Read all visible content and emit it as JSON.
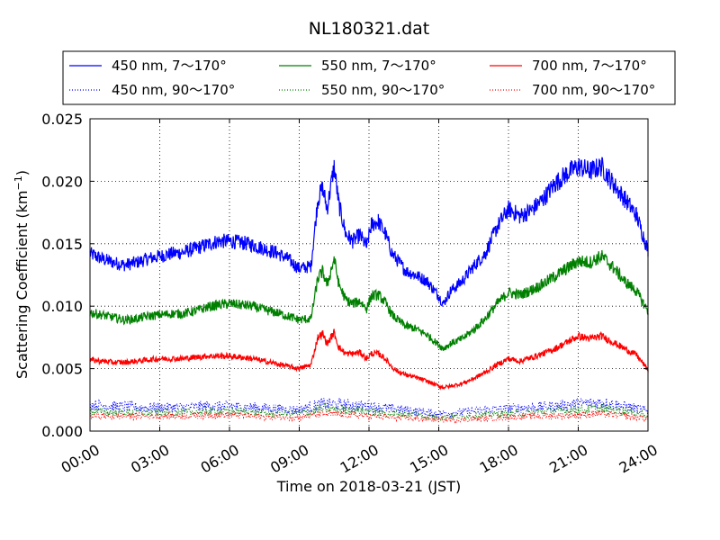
{
  "chart_data": {
    "type": "line",
    "title": "NL180321.dat",
    "xlabel": "Time on 2018-03-21 (JST)",
    "ylabel_main": "Scattering Coefficient (km",
    "ylabel_sup": "−1",
    "ylabel_close": ")",
    "x_unit": "hours",
    "xlim": [
      0,
      24
    ],
    "ylim": [
      0,
      0.025
    ],
    "x_ticks": [
      0,
      3,
      6,
      9,
      12,
      15,
      18,
      21,
      24
    ],
    "x_tick_labels": [
      "00:00",
      "03:00",
      "06:00",
      "09:00",
      "12:00",
      "15:00",
      "18:00",
      "21:00",
      "24:00"
    ],
    "y_ticks": [
      0,
      0.005,
      0.01,
      0.015,
      0.02,
      0.025
    ],
    "y_tick_labels": [
      "0.000",
      "0.005",
      "0.010",
      "0.015",
      "0.020",
      "0.025"
    ],
    "grid": true,
    "legend_position": "top, above plot",
    "legend_columns": 3,
    "series": [
      {
        "name": "450 nm, 7～170°",
        "color": "#0000ff",
        "style": "solid",
        "x": [
          0,
          0.5,
          1,
          1.5,
          2,
          2.5,
          3,
          3.5,
          4,
          4.5,
          5,
          5.5,
          6,
          6.5,
          7,
          7.5,
          8,
          8.5,
          9,
          9.5,
          9.8,
          10,
          10.2,
          10.5,
          10.7,
          11,
          11.3,
          11.6,
          11.9,
          12.1,
          12.4,
          12.7,
          13,
          13.3,
          13.6,
          14,
          14.5,
          15,
          15.2,
          15.5,
          16,
          16.5,
          17,
          17.5,
          18,
          18.5,
          19,
          19.5,
          20,
          20.5,
          21,
          21.5,
          22,
          22.5,
          23,
          23.5,
          24
        ],
        "y": [
          0.0142,
          0.0138,
          0.0135,
          0.0133,
          0.0135,
          0.0138,
          0.014,
          0.0142,
          0.0143,
          0.0146,
          0.0149,
          0.0152,
          0.0152,
          0.0151,
          0.0149,
          0.0146,
          0.0143,
          0.0138,
          0.013,
          0.0132,
          0.0185,
          0.0195,
          0.0178,
          0.0212,
          0.0182,
          0.0158,
          0.0152,
          0.0157,
          0.0148,
          0.0165,
          0.0168,
          0.0158,
          0.0142,
          0.0135,
          0.0128,
          0.0125,
          0.012,
          0.0108,
          0.0102,
          0.0112,
          0.012,
          0.0132,
          0.0142,
          0.0163,
          0.0178,
          0.0172,
          0.0177,
          0.0186,
          0.0198,
          0.0206,
          0.0212,
          0.0208,
          0.0212,
          0.0198,
          0.0186,
          0.0173,
          0.0145
        ]
      },
      {
        "name": "450 nm, 90～170°",
        "color": "#0000ff",
        "style": "dotted",
        "x": [
          0,
          1,
          2,
          3,
          4,
          5,
          6,
          7,
          8,
          9,
          10,
          11,
          12,
          13,
          14,
          15,
          16,
          17,
          18,
          19,
          20,
          21,
          22,
          23,
          24
        ],
        "y": [
          0.0021,
          0.002,
          0.0019,
          0.0019,
          0.0019,
          0.002,
          0.002,
          0.0019,
          0.0018,
          0.0017,
          0.0022,
          0.0021,
          0.002,
          0.0018,
          0.0016,
          0.0014,
          0.0015,
          0.0017,
          0.0018,
          0.0019,
          0.002,
          0.0022,
          0.0023,
          0.002,
          0.0016
        ]
      },
      {
        "name": "550 nm, 7～170°",
        "color": "#008000",
        "style": "solid",
        "x": [
          0,
          0.5,
          1,
          1.5,
          2,
          2.5,
          3,
          3.5,
          4,
          4.5,
          5,
          5.5,
          6,
          6.5,
          7,
          7.5,
          8,
          8.5,
          9,
          9.5,
          9.8,
          10,
          10.2,
          10.5,
          10.7,
          11,
          11.3,
          11.6,
          11.9,
          12.1,
          12.4,
          12.7,
          13,
          13.3,
          13.6,
          14,
          14.5,
          15,
          15.2,
          15.5,
          16,
          16.5,
          17,
          17.5,
          18,
          18.5,
          19,
          19.5,
          20,
          20.5,
          21,
          21.5,
          22,
          22.5,
          23,
          23.5,
          24
        ],
        "y": [
          0.0095,
          0.0093,
          0.0091,
          0.0089,
          0.009,
          0.0092,
          0.0093,
          0.0094,
          0.0094,
          0.0096,
          0.0099,
          0.0101,
          0.0102,
          0.0101,
          0.01,
          0.0097,
          0.0095,
          0.0092,
          0.0089,
          0.009,
          0.0122,
          0.0128,
          0.0117,
          0.0138,
          0.0118,
          0.0105,
          0.0102,
          0.0104,
          0.0098,
          0.0108,
          0.0109,
          0.0103,
          0.0093,
          0.0088,
          0.0084,
          0.0082,
          0.0077,
          0.0069,
          0.0066,
          0.007,
          0.0074,
          0.0081,
          0.009,
          0.0102,
          0.0111,
          0.0109,
          0.0113,
          0.0118,
          0.0124,
          0.013,
          0.0136,
          0.0135,
          0.014,
          0.0131,
          0.012,
          0.0112,
          0.0096
        ]
      },
      {
        "name": "550 nm, 90～170°",
        "color": "#008000",
        "style": "dotted",
        "x": [
          0,
          1,
          2,
          3,
          4,
          5,
          6,
          7,
          8,
          9,
          10,
          11,
          12,
          13,
          14,
          15,
          16,
          17,
          18,
          19,
          20,
          21,
          22,
          23,
          24
        ],
        "y": [
          0.0016,
          0.0015,
          0.0015,
          0.0015,
          0.0015,
          0.0016,
          0.0016,
          0.0015,
          0.0014,
          0.0014,
          0.0018,
          0.0017,
          0.0016,
          0.0014,
          0.0013,
          0.0011,
          0.0012,
          0.0013,
          0.0014,
          0.0015,
          0.0016,
          0.0017,
          0.0018,
          0.0016,
          0.0013
        ]
      },
      {
        "name": "700 nm, 7～170°",
        "color": "#ff0000",
        "style": "solid",
        "x": [
          0,
          0.5,
          1,
          1.5,
          2,
          2.5,
          3,
          3.5,
          4,
          4.5,
          5,
          5.5,
          6,
          6.5,
          7,
          7.5,
          8,
          8.5,
          9,
          9.5,
          9.8,
          10,
          10.2,
          10.5,
          10.7,
          11,
          11.3,
          11.6,
          11.9,
          12.1,
          12.4,
          12.7,
          13,
          13.3,
          13.6,
          14,
          14.5,
          15,
          15.2,
          15.5,
          16,
          16.5,
          17,
          17.5,
          18,
          18.5,
          19,
          19.5,
          20,
          20.5,
          21,
          21.5,
          22,
          22.5,
          23,
          23.5,
          24
        ],
        "y": [
          0.0057,
          0.0056,
          0.0055,
          0.0055,
          0.0056,
          0.0057,
          0.0058,
          0.0058,
          0.0058,
          0.0059,
          0.006,
          0.006,
          0.006,
          0.0059,
          0.0058,
          0.0056,
          0.0054,
          0.0052,
          0.005,
          0.0053,
          0.0075,
          0.0078,
          0.007,
          0.0079,
          0.0067,
          0.0062,
          0.0062,
          0.0063,
          0.0058,
          0.0062,
          0.0062,
          0.0058,
          0.0051,
          0.0047,
          0.0045,
          0.0043,
          0.004,
          0.0036,
          0.0035,
          0.0036,
          0.0038,
          0.0042,
          0.0047,
          0.0053,
          0.0058,
          0.0056,
          0.0059,
          0.0062,
          0.0066,
          0.0071,
          0.0076,
          0.0074,
          0.0076,
          0.0071,
          0.0066,
          0.0061,
          0.0049
        ]
      },
      {
        "name": "700 nm, 90～170°",
        "color": "#ff0000",
        "style": "dotted",
        "x": [
          0,
          1,
          2,
          3,
          4,
          5,
          6,
          7,
          8,
          9,
          10,
          11,
          12,
          13,
          14,
          15,
          16,
          17,
          18,
          19,
          20,
          21,
          22,
          23,
          24
        ],
        "y": [
          0.0012,
          0.0012,
          0.0012,
          0.0012,
          0.0012,
          0.0013,
          0.0013,
          0.0012,
          0.0011,
          0.0011,
          0.0014,
          0.0013,
          0.0012,
          0.0011,
          0.001,
          0.0009,
          0.0009,
          0.001,
          0.0011,
          0.0012,
          0.0012,
          0.0013,
          0.0014,
          0.0012,
          0.001
        ]
      }
    ]
  }
}
